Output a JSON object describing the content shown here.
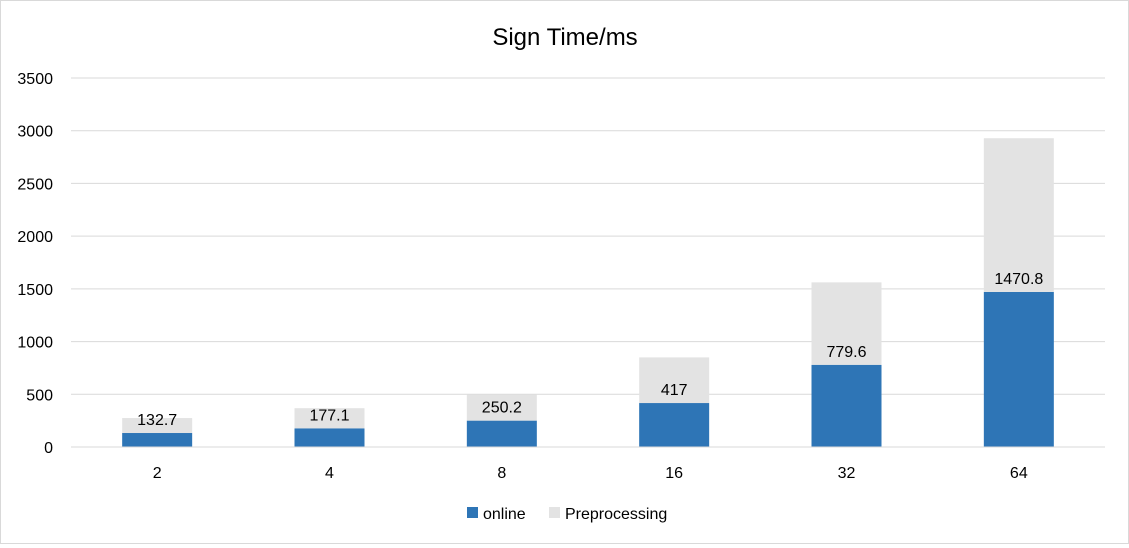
{
  "chart_data": {
    "type": "bar",
    "stacked": true,
    "title": "Sign Time/ms",
    "xlabel": "",
    "ylabel": "",
    "categories": [
      "2",
      "4",
      "8",
      "16",
      "32",
      "64"
    ],
    "series": [
      {
        "name": "online",
        "color": "#2e75b6",
        "values": [
          132.7,
          177.1,
          250.2,
          417,
          779.6,
          1470.8
        ],
        "labels": [
          "132.7",
          "177.1",
          "250.2",
          "417",
          "779.6",
          "1470.8"
        ]
      },
      {
        "name": "Preprocessing",
        "color": "#e3e3e3",
        "values": [
          142,
          191,
          248,
          433,
          782,
          1458
        ]
      }
    ],
    "ylim": [
      0,
      3500
    ],
    "yticks": [
      "0",
      "500",
      "1000",
      "1500",
      "2000",
      "2500",
      "3000",
      "3500"
    ],
    "grid": true,
    "legend": "bottom"
  }
}
